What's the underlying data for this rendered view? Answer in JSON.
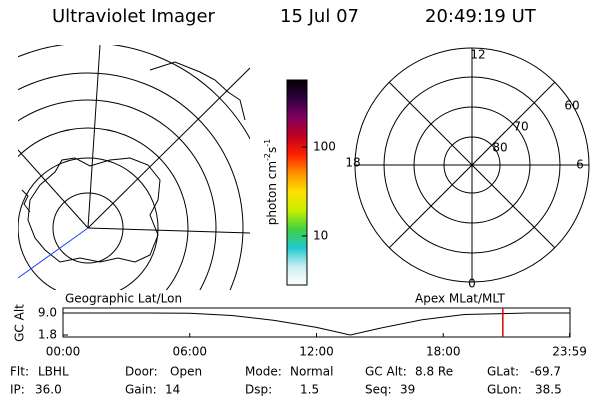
{
  "header": {
    "title": "Ultraviolet Imager",
    "date": "15 Jul 07",
    "time": "20:49:19 UT"
  },
  "left_map": {
    "label": "Geographic Lat/Lon"
  },
  "right_map": {
    "label": "Apex MLat/MLT",
    "mlt_labels": [
      "12",
      "6",
      "0",
      "18"
    ],
    "lat_labels": [
      "60",
      "70",
      "80"
    ]
  },
  "colorbar": {
    "label_parts": [
      "photon cm",
      "-2",
      "s",
      "-1"
    ],
    "log": true,
    "clim": [
      2.8,
      570
    ],
    "ticks": [
      10,
      100
    ],
    "colors": [
      "#ffffff",
      "#c8eef0",
      "#20c8d0",
      "#40d040",
      "#c8f000",
      "#ffe000",
      "#ff9000",
      "#ff2000",
      "#c00020",
      "#800060",
      "#300040",
      "#000000"
    ]
  },
  "altitude": {
    "ylabel": "GC Alt",
    "ylim": [
      1.8,
      9.0
    ],
    "yticks": [
      {
        "value": 9.0,
        "label": "9.0"
      },
      {
        "value": 1.8,
        "label": "1.8"
      }
    ],
    "xlim": [
      0,
      24
    ],
    "xticks": [
      {
        "value": 0,
        "label": "00:00"
      },
      {
        "value": 6,
        "label": "06:00"
      },
      {
        "value": 12,
        "label": "12:00"
      },
      {
        "value": 18,
        "label": "18:00"
      },
      {
        "value": 23.98,
        "label": "23:59"
      }
    ],
    "x": [
      0,
      2,
      4,
      6,
      8,
      10,
      12,
      13.6,
      15,
      17,
      19,
      20.82,
      22,
      24
    ],
    "values": [
      9.0,
      9.0,
      9.0,
      8.9,
      8.2,
      6.6,
      4.3,
      1.8,
      4.0,
      6.8,
      8.5,
      8.8,
      9.0,
      9.0
    ],
    "marker_hour": 20.82,
    "marker_color": "#e00000"
  },
  "info": {
    "rows": [
      [
        [
          "Flt:",
          "LBHL"
        ],
        [
          "Door:",
          "Open"
        ],
        [
          "Mode:",
          "Normal"
        ],
        [
          "GC Alt:",
          "8.8 Re"
        ],
        [
          "GLat:",
          "-69.7"
        ]
      ],
      [
        [
          "IP:",
          "36.0"
        ],
        [
          "Gain:",
          "14"
        ],
        [
          "Dsp:",
          "1.5"
        ],
        [
          "Seq:",
          "39"
        ],
        [
          "GLon:",
          "38.5"
        ]
      ]
    ]
  }
}
